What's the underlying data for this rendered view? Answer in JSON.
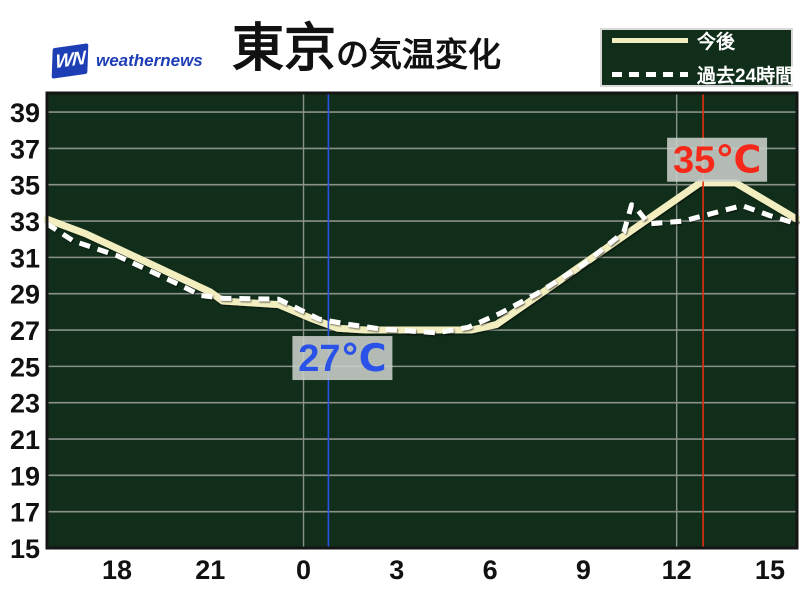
{
  "header": {
    "logo": {
      "short": "WN",
      "brand": "weathernews"
    },
    "title": {
      "main": "東京",
      "suffix": "の気温変化"
    }
  },
  "legend": {
    "items": [
      {
        "label": "今後",
        "style": "solid",
        "color": "#f3eec0"
      },
      {
        "label": "過去24時間",
        "style": "dashed",
        "color": "#ffffff"
      }
    ]
  },
  "chart_data": {
    "type": "line",
    "title": "東京の気温変化",
    "x_axis": {
      "unit": "hour",
      "domain": [
        15.75,
        39.87
      ],
      "ticks": [
        18,
        21,
        24,
        27,
        30,
        33,
        36,
        39
      ],
      "tick_labels": [
        "18",
        "21",
        "0",
        "3",
        "6",
        "9",
        "12",
        "15"
      ]
    },
    "y_axis": {
      "unit": "℃",
      "domain": [
        15,
        40.05
      ],
      "ticks": [
        15,
        17,
        19,
        21,
        23,
        25,
        27,
        29,
        31,
        33,
        35,
        37,
        39
      ]
    },
    "grid": {
      "horizontal_step": 2,
      "vertical_line_hours": [
        24,
        36
      ]
    },
    "series": [
      {
        "name": "今後",
        "line_style": "solid",
        "color": "#f3eec0",
        "points": [
          [
            15.75,
            33.1
          ],
          [
            17,
            32.3
          ],
          [
            18,
            31.5
          ],
          [
            19,
            30.7
          ],
          [
            20,
            29.9
          ],
          [
            21,
            29.1
          ],
          [
            21.4,
            28.6
          ],
          [
            23.2,
            28.4
          ],
          [
            24.3,
            27.6
          ],
          [
            25.1,
            27.1
          ],
          [
            26,
            27.0
          ],
          [
            29.4,
            27.0
          ],
          [
            30.2,
            27.3
          ],
          [
            36.75,
            35.1
          ],
          [
            37.9,
            35.1
          ],
          [
            39.87,
            33.1
          ]
        ]
      },
      {
        "name": "過去24時間",
        "line_style": "dashed",
        "color": "#ffffff",
        "points": [
          [
            15.75,
            32.85
          ],
          [
            16.6,
            31.9
          ],
          [
            18,
            31.1
          ],
          [
            19,
            30.3
          ],
          [
            20,
            29.5
          ],
          [
            20.7,
            28.9
          ],
          [
            21.4,
            28.75
          ],
          [
            23.2,
            28.7
          ],
          [
            24.5,
            27.6
          ],
          [
            25.5,
            27.3
          ],
          [
            26.5,
            27.05
          ],
          [
            28.3,
            26.85
          ],
          [
            29.3,
            27.15
          ],
          [
            30.3,
            27.9
          ],
          [
            31.5,
            29.0
          ],
          [
            33,
            30.6
          ],
          [
            34.3,
            32.4
          ],
          [
            34.55,
            33.9
          ],
          [
            34.75,
            33.6
          ],
          [
            35.1,
            32.85
          ],
          [
            36.2,
            33.0
          ],
          [
            38.1,
            33.85
          ],
          [
            39.0,
            33.3
          ],
          [
            39.87,
            32.85
          ]
        ]
      }
    ],
    "markers": [
      {
        "label": "27℃",
        "hour": 24.8,
        "value": 27,
        "kind": "min",
        "line_color": "#2a52e8",
        "text_color": "#2a52e8"
      },
      {
        "label": "35℃",
        "hour": 36.85,
        "value": 35,
        "kind": "max",
        "line_color": "#e0300f",
        "text_color": "#f5291a"
      }
    ],
    "colors": {
      "plot_background": "#102e1a",
      "grid_line": "#8a918a",
      "border": "#151515",
      "axis_text": "#111111",
      "marker_box": "#c9cfc9"
    }
  }
}
